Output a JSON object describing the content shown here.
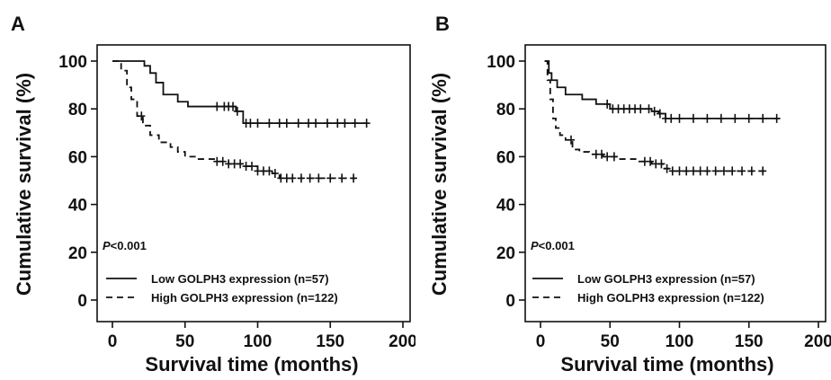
{
  "chart_data": [
    {
      "type": "line",
      "panel": "A",
      "xlabel": "Survival time (months)",
      "ylabel": "Cumulative survival (%)",
      "xlim": [
        0,
        200
      ],
      "ylim": [
        0,
        100
      ],
      "xticks": [
        "0",
        "50",
        "100",
        "150",
        "200"
      ],
      "yticks": [
        "0",
        "20",
        "40",
        "60",
        "80",
        "100"
      ],
      "grid": false,
      "legend_position": "bottom-right",
      "annotation": {
        "italic": "P",
        "text": "<0.001"
      },
      "series": [
        {
          "name": "Low GOLPH3 expression (n=57)",
          "style": "solid",
          "x": [
            0,
            10,
            15,
            22,
            26,
            30,
            35,
            45,
            52,
            60,
            70,
            85,
            90,
            175
          ],
          "y": [
            100,
            100,
            100,
            98,
            95,
            91,
            86,
            83,
            81,
            81,
            81,
            79,
            74,
            74
          ],
          "censor_x": [
            72,
            77,
            80,
            83,
            86,
            92,
            95,
            100,
            108,
            115,
            120,
            128,
            135,
            140,
            148,
            155,
            160,
            167,
            175
          ]
        },
        {
          "name": "High GOLPH3 expression (n=122)",
          "style": "dashed",
          "x": [
            0,
            6,
            10,
            13,
            17,
            21,
            26,
            32,
            40,
            45,
            50,
            58,
            70,
            80,
            90,
            100,
            110,
            115,
            125,
            168
          ],
          "y": [
            100,
            96,
            89,
            84,
            77,
            73,
            69,
            66,
            64,
            62,
            60,
            59,
            58,
            57,
            56,
            54,
            53,
            51,
            51,
            51
          ],
          "censor_x": [
            20,
            72,
            76,
            80,
            84,
            88,
            92,
            96,
            100,
            104,
            108,
            112,
            116,
            120,
            124,
            130,
            136,
            142,
            150,
            158,
            166
          ]
        }
      ]
    },
    {
      "type": "line",
      "panel": "B",
      "xlabel": "Survival time (months)",
      "ylabel": "Cumulative survival (%)",
      "xlim": [
        0,
        200
      ],
      "ylim": [
        0,
        100
      ],
      "xticks": [
        "0",
        "50",
        "100",
        "150",
        "200"
      ],
      "yticks": [
        "0",
        "20",
        "40",
        "60",
        "80",
        "100"
      ],
      "grid": false,
      "legend_position": "bottom-right",
      "annotation": {
        "italic": "P",
        "text": "<0.001"
      },
      "series": [
        {
          "name": "Low GOLPH3 expression (n=57)",
          "style": "solid",
          "x": [
            3,
            6,
            8,
            12,
            18,
            30,
            40,
            50,
            65,
            80,
            85,
            90,
            172
          ],
          "y": [
            100,
            95,
            92,
            89,
            86,
            84,
            82,
            80,
            80,
            79,
            78,
            76,
            76
          ],
          "censor_x": [
            48,
            52,
            56,
            60,
            64,
            68,
            72,
            78,
            82,
            86,
            90,
            94,
            100,
            110,
            120,
            130,
            140,
            150,
            160,
            170
          ]
        },
        {
          "name": "High GOLPH3 expression (n=122)",
          "style": "dashed",
          "x": [
            3,
            5,
            7,
            9,
            11,
            14,
            18,
            23,
            28,
            35,
            45,
            55,
            70,
            80,
            88,
            95,
            163
          ],
          "y": [
            100,
            92,
            84,
            76,
            72,
            69,
            67,
            63,
            62,
            61,
            60,
            59,
            58,
            57,
            55,
            54,
            54
          ],
          "censor_x": [
            22,
            40,
            44,
            48,
            53,
            75,
            79,
            83,
            87,
            91,
            95,
            100,
            105,
            110,
            115,
            120,
            126,
            132,
            138,
            145,
            152,
            160
          ]
        }
      ]
    }
  ],
  "panels": [
    {
      "letter": "A"
    },
    {
      "letter": "B"
    }
  ]
}
